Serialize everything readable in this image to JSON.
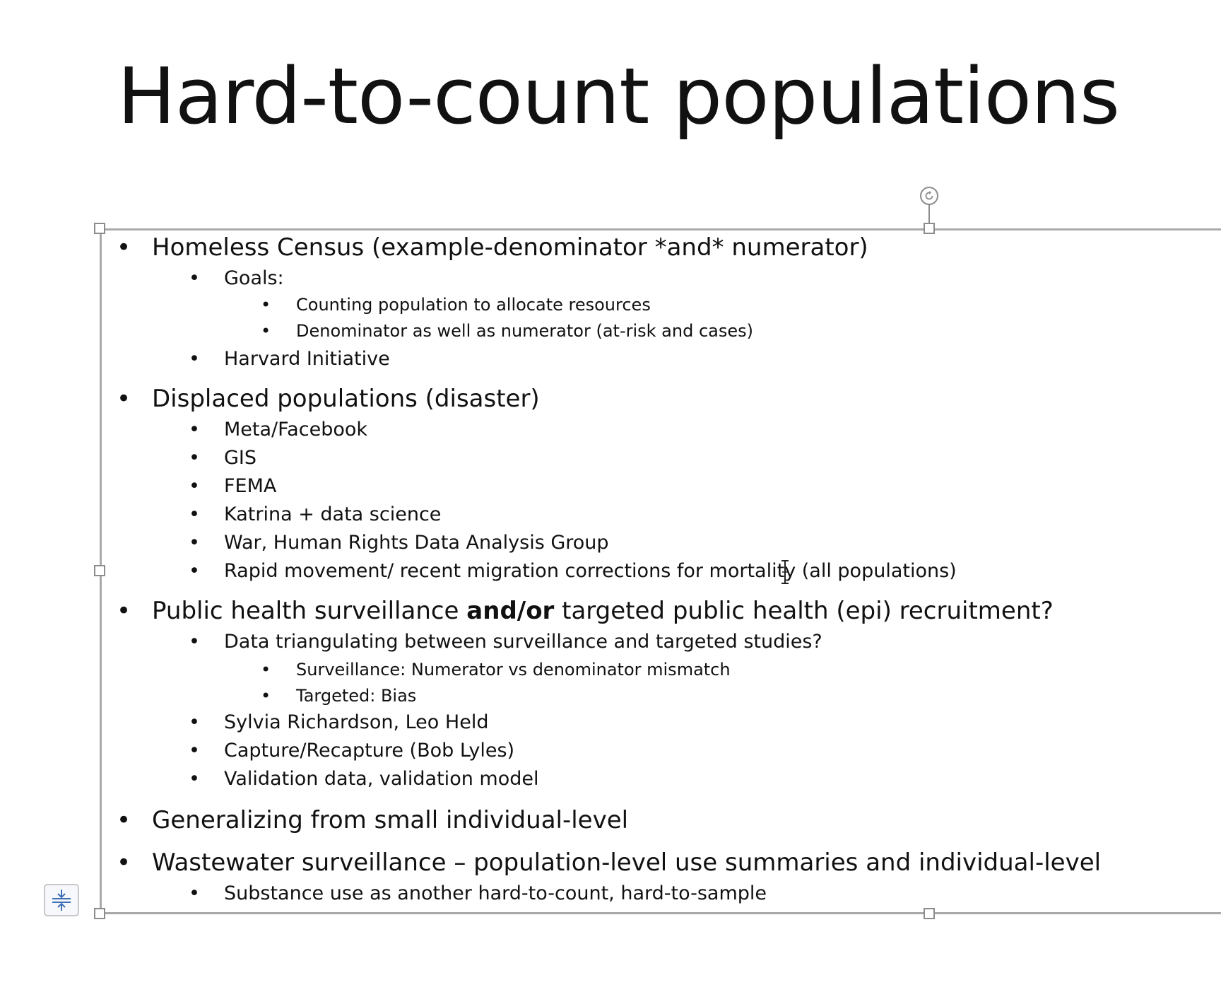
{
  "slide": {
    "title": "Hard-to-count populations"
  },
  "content": {
    "b1": "Homeless Census (example-denominator *and* numerator)",
    "b1_1": "Goals:",
    "b1_1_1": "Counting population to allocate resources",
    "b1_1_2": "Denominator as well as numerator (at-risk and cases)",
    "b1_2": "Harvard Initiative",
    "b2": "Displaced populations (disaster)",
    "b2_1": "Meta/Facebook",
    "b2_2": "GIS",
    "b2_3": "FEMA",
    "b2_4": "Katrina + data science",
    "b2_5": "War, Human Rights Data Analysis Group",
    "b2_6": "Rapid movement/ recent migration corrections for mortality (all populations)",
    "b3_pre": "Public health surveillance ",
    "b3_bold": "and/or",
    "b3_post": " targeted public health (epi) recruitment?",
    "b3_1": "Data triangulating between surveillance and targeted studies?",
    "b3_1_1": "Surveillance: Numerator vs denominator mismatch",
    "b3_1_2": "Targeted: Bias",
    "b3_2": "Sylvia Richardson, Leo Held",
    "b3_3": "Capture/Recapture (Bob Lyles)",
    "b3_4": "Validation data, validation model",
    "b4": "Generalizing from small individual-level",
    "b5": "Wastewater surveillance – population-level use summaries and individual-level",
    "b5_1": "Substance use as another hard-to-count, hard-to-sample"
  },
  "bullet_glyph": "•",
  "icons": {
    "rotate": "rotate-handle-icon",
    "autofit": "autofit-options-icon",
    "cursor": "text-cursor-icon"
  },
  "colors": {
    "frame": "#a9a9a9",
    "text": "#111111",
    "autofit_accent": "#3f6fb5"
  }
}
